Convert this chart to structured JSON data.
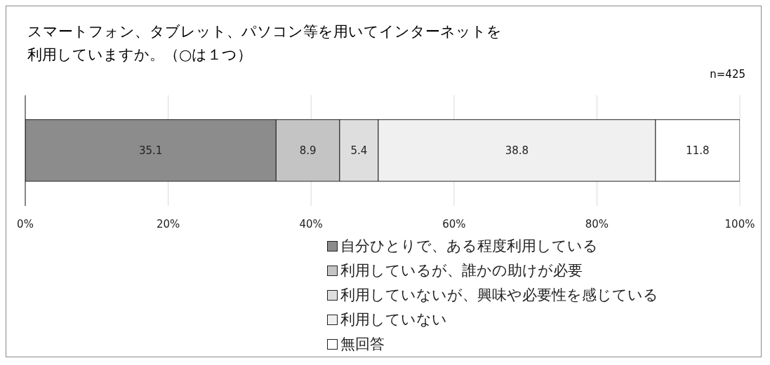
{
  "chart_data": {
    "type": "bar",
    "orientation": "horizontal",
    "stacked": true,
    "title": "スマートフォン、タブレット、パソコン等を用いてインターネットを利用していますか。（○は１つ）",
    "annotations": [
      "n=425"
    ],
    "categories": [
      null
    ],
    "series": [
      {
        "name": "自分ひとりで、ある程度利用している",
        "color": "#8c8c8c",
        "values": [
          35.1
        ]
      },
      {
        "name": "利用しているが、誰かの助けが必要",
        "color": "#c4c4c4",
        "values": [
          8.9
        ]
      },
      {
        "name": "利用していないが、興味や必要性を感じている",
        "color": "#dedede",
        "values": [
          5.4
        ]
      },
      {
        "name": "利用していない",
        "color": "#f0f0f0",
        "values": [
          38.8
        ]
      },
      {
        "name": "無回答",
        "color": "#ffffff",
        "values": [
          11.8
        ]
      }
    ],
    "xlim": [
      0,
      100
    ],
    "xticks": [
      {
        "value": 0,
        "label": "0%"
      },
      {
        "value": 20,
        "label": "20%"
      },
      {
        "value": 40,
        "label": "40%"
      },
      {
        "value": 60,
        "label": "60%"
      },
      {
        "value": 80,
        "label": "80%"
      },
      {
        "value": 100,
        "label": "100%"
      }
    ],
    "grid": "x",
    "legend": "bottom",
    "data_labels": true
  }
}
